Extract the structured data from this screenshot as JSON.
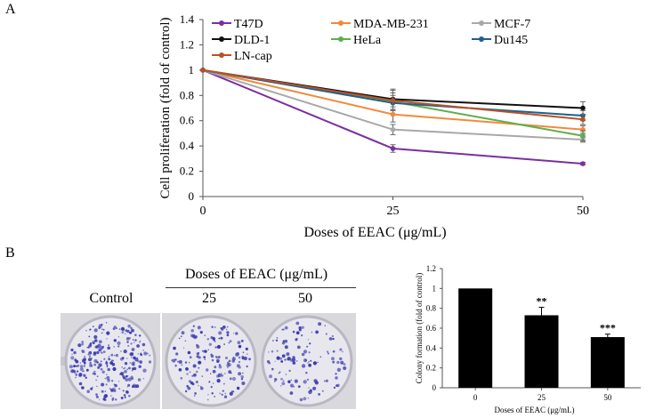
{
  "panel_a": {
    "label": "A"
  },
  "panel_b": {
    "label": "B",
    "photos": {
      "header": "Doses of EEAC (μg/mL)",
      "labels": [
        "Control",
        "25",
        "50"
      ],
      "dot_color": "#3a3ab0"
    }
  },
  "chart_data": [
    {
      "type": "line",
      "title": "",
      "xlabel": "Doses of EEAC (μg/mL)",
      "ylabel": "Cell proliferation (fold of control)",
      "x": [
        0,
        25,
        50
      ],
      "ylim": [
        0,
        1.4
      ],
      "yticks": [
        "0",
        "0.2",
        "0.4",
        "0.6",
        "0.8",
        "1",
        "1.2",
        "1.4"
      ],
      "xticks": [
        "0",
        "25",
        "50"
      ],
      "legend_position": "top",
      "series": [
        {
          "name": "T47D",
          "color": "#7b2fa0",
          "values": [
            1,
            0.38,
            0.26
          ],
          "errors": [
            0,
            0.03,
            0.01
          ]
        },
        {
          "name": "MDA-MB-231",
          "color": "#f08a3c",
          "values": [
            1,
            0.65,
            0.53
          ],
          "errors": [
            0,
            0.06,
            0.03
          ]
        },
        {
          "name": "MCF-7",
          "color": "#a8a8a8",
          "values": [
            1,
            0.53,
            0.45
          ],
          "errors": [
            0,
            0.04,
            0.02
          ]
        },
        {
          "name": "DLD-1",
          "color": "#111111",
          "values": [
            1,
            0.77,
            0.7
          ],
          "errors": [
            0,
            0.08,
            0.05
          ]
        },
        {
          "name": "HeLa",
          "color": "#5fae4e",
          "values": [
            1,
            0.75,
            0.48
          ],
          "errors": [
            0,
            0.07,
            0.04
          ]
        },
        {
          "name": "Du145",
          "color": "#1f5f8b",
          "values": [
            1,
            0.74,
            0.64
          ],
          "errors": [
            0,
            0.06,
            0.04
          ]
        },
        {
          "name": "LN-cap",
          "color": "#b5532a",
          "values": [
            1,
            0.76,
            0.61
          ],
          "errors": [
            0,
            0.08,
            0.04
          ]
        }
      ]
    },
    {
      "type": "bar",
      "title": "",
      "xlabel": "Doses of EEAC (μg/mL)",
      "ylabel": "Colony formation (fold of control)",
      "categories": [
        "0",
        "25",
        "50"
      ],
      "values": [
        1.0,
        0.73,
        0.51
      ],
      "errors": [
        0,
        0.08,
        0.03
      ],
      "significance": [
        "",
        "**",
        "***"
      ],
      "ylim": [
        0,
        1.2
      ],
      "yticks": [
        "0",
        "0.2",
        "0.4",
        "0.6",
        "0.8",
        "1",
        "1.2"
      ],
      "bar_color": "#000000"
    }
  ]
}
